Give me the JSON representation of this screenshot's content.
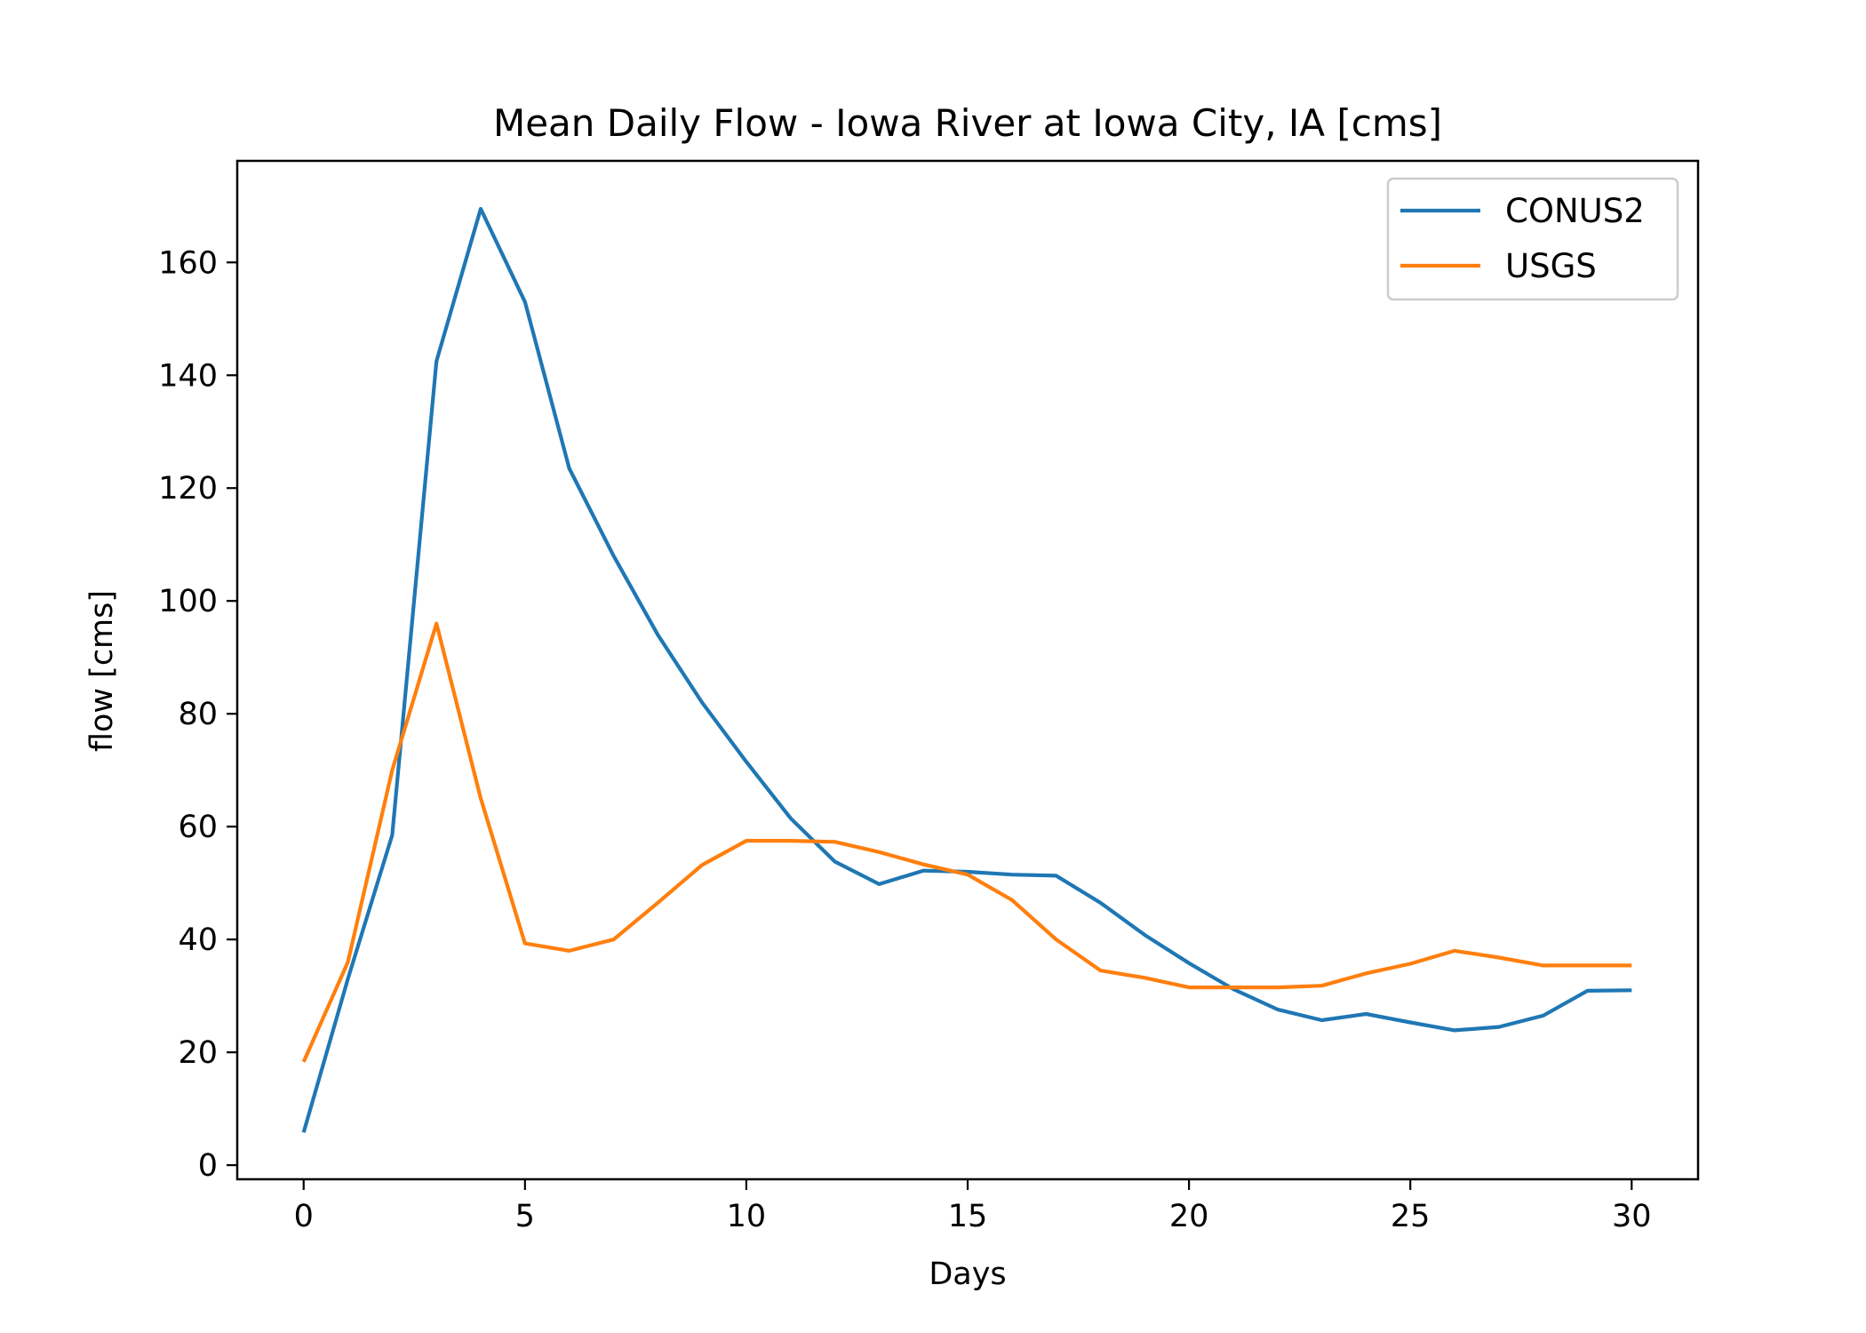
{
  "chart_data": {
    "type": "line",
    "title": "Mean Daily Flow - Iowa River at Iowa City, IA [cms]",
    "xlabel": "Days",
    "ylabel": "flow [cms]",
    "xlim": [
      -1.5,
      31.5
    ],
    "ylim": [
      -2.5,
      178
    ],
    "xticks": [
      0,
      5,
      10,
      15,
      20,
      25,
      30
    ],
    "yticks": [
      0,
      20,
      40,
      60,
      80,
      100,
      120,
      140,
      160
    ],
    "grid": false,
    "legend_position": "upper right",
    "x": [
      0,
      1,
      2,
      3,
      4,
      5,
      6,
      7,
      8,
      9,
      10,
      11,
      12,
      13,
      14,
      15,
      16,
      17,
      18,
      19,
      20,
      21,
      22,
      23,
      24,
      25,
      26,
      27,
      28,
      29,
      30
    ],
    "series": [
      {
        "name": "CONUS2",
        "color": "#1f77b4",
        "values": [
          5.8,
          33,
          58.5,
          142.5,
          169.5,
          153,
          123.5,
          108,
          94,
          82,
          71.5,
          61.5,
          53.8,
          49.8,
          52.2,
          52,
          51.5,
          51.3,
          46.5,
          40.8,
          35.8,
          31.2,
          27.6,
          25.7,
          26.8,
          25.3,
          23.9,
          24.5,
          26.5,
          30.9,
          31
        ]
      },
      {
        "name": "USGS",
        "color": "#ff7f0e",
        "values": [
          18.3,
          36,
          70,
          96,
          65,
          39.3,
          38,
          40,
          46.5,
          53.2,
          57.5,
          57.5,
          57.3,
          55.5,
          53.3,
          51.5,
          47,
          40,
          34.5,
          33.2,
          31.5,
          31.5,
          31.5,
          31.8,
          34,
          35.7,
          38,
          36.8,
          35.4,
          35.4,
          35.4
        ]
      }
    ]
  }
}
